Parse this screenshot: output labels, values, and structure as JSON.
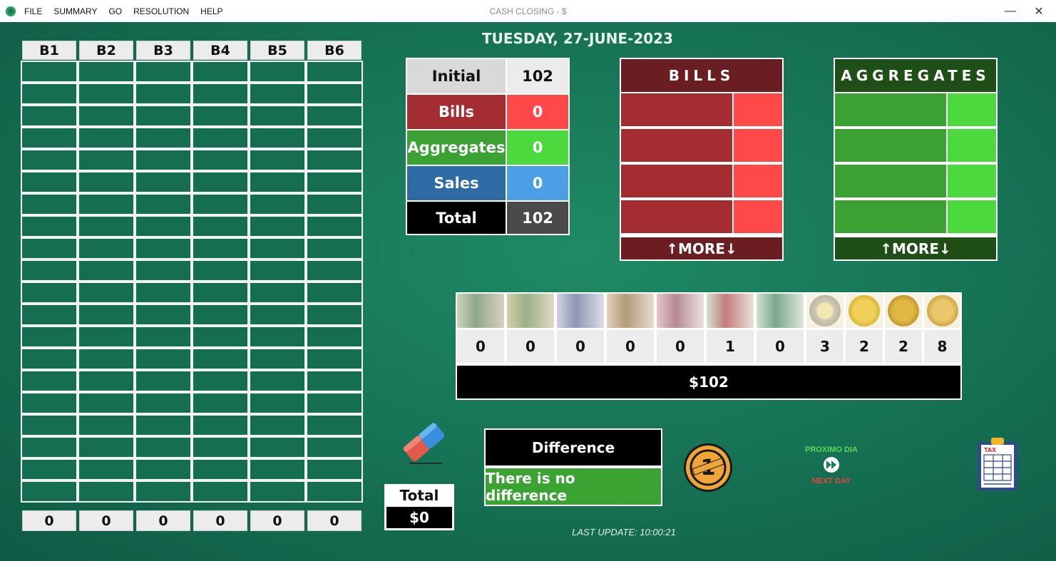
{
  "titlebar": {
    "menu": [
      "FILE",
      "SUMMARY",
      "GO",
      "RESOLUTION",
      "HELP"
    ],
    "title": "CASH CLOSING - $",
    "minimize": "—",
    "close": "✕"
  },
  "date": "TUESDAY, 27-JUNE-2023",
  "boxes": {
    "headers": [
      "B1",
      "B2",
      "B3",
      "B4",
      "B5",
      "B6"
    ],
    "totals": [
      "0",
      "0",
      "0",
      "0",
      "0",
      "0"
    ]
  },
  "summary": {
    "initial": {
      "label": "Initial",
      "value": "102"
    },
    "bills": {
      "label": "Bills",
      "value": "0"
    },
    "aggregates": {
      "label": "Aggregates",
      "value": "0"
    },
    "sales": {
      "label": "Sales",
      "value": "0"
    },
    "total": {
      "label": "Total",
      "value": "102"
    }
  },
  "bills_panel": {
    "title": "BILLS",
    "more": "↑MORE↓"
  },
  "aggregates_panel": {
    "title": "AGGREGATES",
    "more": "↑MORE↓"
  },
  "denominations": {
    "counts": [
      "0",
      "0",
      "0",
      "0",
      "0",
      "1",
      "0",
      "3",
      "2",
      "2",
      "8"
    ],
    "total": "$102"
  },
  "cash_total": {
    "label": "Total",
    "value": "$0"
  },
  "difference": {
    "label": "Difference",
    "status": "There is no difference"
  },
  "next_day": {
    "line1": "PROXIMO DIA",
    "line2": "NEXT DAY"
  },
  "last_update": "LAST UPDATE: 10:00:21",
  "colors": {
    "bills_dark": "#a32d30",
    "bills_light": "#ff4848",
    "bills_head": "#6b1e22",
    "agg_dark": "#3aa132",
    "agg_light": "#4cd93e",
    "agg_head": "#1f4f17",
    "sales_dark": "#2e6aa3",
    "sales_light": "#4b9fe4"
  },
  "icons": {
    "eraser": "eraser-icon",
    "coin": "coin-icon",
    "next_day": "fast-forward-icon",
    "tax": "tax-clipboard-icon"
  }
}
